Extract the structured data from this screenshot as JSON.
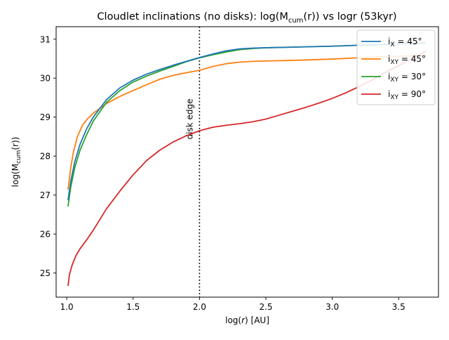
{
  "chart_data": {
    "type": "line",
    "title": "Cloudlet inclinations (no disks): log(M",
    "title_sub": "cum",
    "title_tail": "(r)) vs logr (53kyr)",
    "xlabel": "log(",
    "xlabel_var": "r",
    "xlabel_tail": ") [AU]",
    "ylabel": "log(M",
    "ylabel_sub": "cum",
    "ylabel_tail": "(r))",
    "xlim": [
      0.92,
      3.8
    ],
    "ylim": [
      24.38,
      31.32
    ],
    "xticks": [
      1.0,
      1.5,
      2.0,
      2.5,
      3.0,
      3.5
    ],
    "xtick_labels": [
      "1.0",
      "1.5",
      "2.0",
      "2.5",
      "3.0",
      "3.5"
    ],
    "yticks": [
      25,
      26,
      27,
      28,
      29,
      30,
      31
    ],
    "ytick_labels": [
      "25",
      "26",
      "27",
      "28",
      "29",
      "30",
      "31"
    ],
    "grid": false,
    "legend_position": "top-right",
    "annotation": {
      "x": 2.0,
      "text": "disk edge",
      "style": "dotted"
    },
    "series": [
      {
        "legend_main": "i",
        "legend_sub": "X",
        "legend_tail": " = 45°",
        "color": "#1f77b4",
        "x": [
          1.01,
          1.03,
          1.06,
          1.1,
          1.15,
          1.2,
          1.3,
          1.4,
          1.5,
          1.6,
          1.7,
          1.8,
          1.9,
          2.0,
          2.1,
          2.2,
          2.3,
          2.4,
          2.5,
          2.75,
          3.0,
          3.25,
          3.5,
          3.7
        ],
        "y": [
          26.88,
          27.35,
          27.85,
          28.3,
          28.7,
          29.0,
          29.45,
          29.75,
          29.95,
          30.1,
          30.22,
          30.33,
          30.43,
          30.53,
          30.62,
          30.7,
          30.75,
          30.77,
          30.78,
          30.8,
          30.82,
          30.85,
          30.88,
          30.91
        ]
      },
      {
        "legend_main": "i",
        "legend_sub": "XY",
        "legend_tail": " = 45°",
        "color": "#ff7f0e",
        "x": [
          1.01,
          1.03,
          1.05,
          1.08,
          1.12,
          1.16,
          1.2,
          1.3,
          1.4,
          1.5,
          1.6,
          1.7,
          1.8,
          1.9,
          2.0,
          2.1,
          2.2,
          2.3,
          2.4,
          2.5,
          2.75,
          3.0,
          3.25,
          3.5,
          3.7
        ],
        "y": [
          27.15,
          27.7,
          28.1,
          28.5,
          28.8,
          28.97,
          29.1,
          29.35,
          29.53,
          29.68,
          29.83,
          29.97,
          30.07,
          30.14,
          30.2,
          30.3,
          30.37,
          30.41,
          30.43,
          30.44,
          30.46,
          30.49,
          30.53,
          30.56,
          30.58
        ]
      },
      {
        "legend_main": "i",
        "legend_sub": "XY",
        "legend_tail": " = 30°",
        "color": "#2ca02c",
        "x": [
          1.01,
          1.03,
          1.06,
          1.1,
          1.15,
          1.2,
          1.3,
          1.4,
          1.5,
          1.6,
          1.7,
          1.8,
          1.9,
          2.0,
          2.1,
          2.2,
          2.3,
          2.4,
          2.5,
          2.75,
          3.0,
          3.25,
          3.5,
          3.7
        ],
        "y": [
          26.72,
          27.2,
          27.7,
          28.15,
          28.55,
          28.9,
          29.38,
          29.68,
          29.9,
          30.05,
          30.18,
          30.3,
          30.42,
          30.52,
          30.6,
          30.67,
          30.73,
          30.76,
          30.78,
          30.8,
          30.82,
          30.85,
          30.88,
          30.9
        ]
      },
      {
        "legend_main": "i",
        "legend_sub": "XY",
        "legend_tail": " = 90°",
        "color": "#d62728",
        "x": [
          1.01,
          1.02,
          1.04,
          1.07,
          1.1,
          1.15,
          1.2,
          1.3,
          1.4,
          1.5,
          1.6,
          1.7,
          1.8,
          1.9,
          2.0,
          2.1,
          2.2,
          2.3,
          2.4,
          2.5,
          2.6,
          2.7,
          2.8,
          2.9,
          3.0,
          3.1,
          3.2,
          3.3,
          3.4,
          3.5,
          3.6,
          3.7
        ],
        "y": [
          24.68,
          24.95,
          25.2,
          25.45,
          25.62,
          25.85,
          26.1,
          26.65,
          27.1,
          27.52,
          27.88,
          28.15,
          28.36,
          28.52,
          28.65,
          28.74,
          28.79,
          28.83,
          28.88,
          28.95,
          29.05,
          29.15,
          29.25,
          29.36,
          29.48,
          29.62,
          29.78,
          29.95,
          30.15,
          30.32,
          30.5,
          30.68
        ]
      }
    ]
  }
}
